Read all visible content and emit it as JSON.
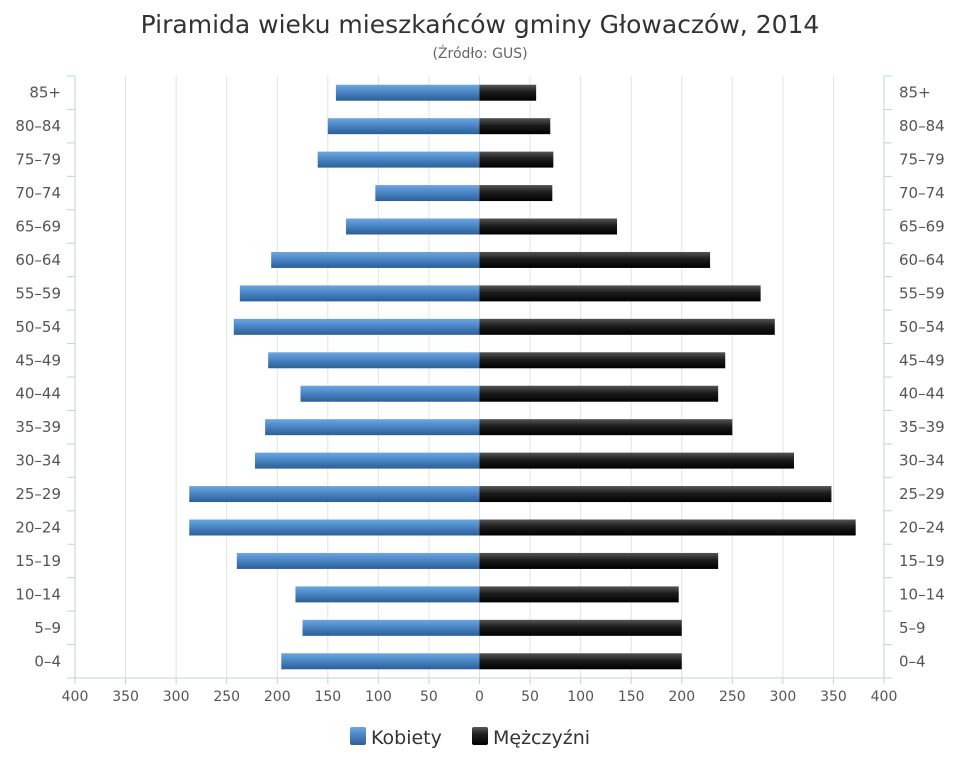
{
  "chart_data": {
    "type": "bar",
    "orientation": "horizontal",
    "layout": "population-pyramid",
    "title": "Piramida wieku mieszkańców gminy Głowaczów, 2014",
    "subtitle": "(Źródło: GUS)",
    "categories": [
      "0–4",
      "5–9",
      "10–14",
      "15–19",
      "20–24",
      "25–29",
      "30–34",
      "35–39",
      "40–44",
      "45–49",
      "50–54",
      "55–59",
      "60–64",
      "65–69",
      "70–74",
      "75–79",
      "80–84",
      "85+"
    ],
    "series": [
      {
        "name": "Kobiety",
        "side": "left",
        "color": "#4a86c6",
        "values": [
          196,
          175,
          182,
          240,
          287,
          287,
          222,
          212,
          177,
          209,
          243,
          237,
          206,
          132,
          103,
          160,
          150,
          142
        ]
      },
      {
        "name": "Mężczyźni",
        "side": "right",
        "color": "#1a1a1a",
        "values": [
          200,
          200,
          197,
          236,
          372,
          348,
          311,
          250,
          236,
          243,
          292,
          278,
          228,
          136,
          72,
          73,
          70,
          56
        ]
      }
    ],
    "xlim": [
      -400,
      400
    ],
    "x_tick_values": [
      -400,
      -350,
      -300,
      -250,
      -200,
      -150,
      -100,
      -50,
      0,
      50,
      100,
      150,
      200,
      250,
      300,
      350,
      400
    ],
    "x_tick_labels": [
      "400",
      "350",
      "300",
      "250",
      "200",
      "150",
      "100",
      "50",
      "0",
      "50",
      "100",
      "150",
      "200",
      "250",
      "300",
      "350",
      "400"
    ],
    "grid": "vertical",
    "legend": "bottom-center",
    "category_labels_on": "both-sides"
  }
}
